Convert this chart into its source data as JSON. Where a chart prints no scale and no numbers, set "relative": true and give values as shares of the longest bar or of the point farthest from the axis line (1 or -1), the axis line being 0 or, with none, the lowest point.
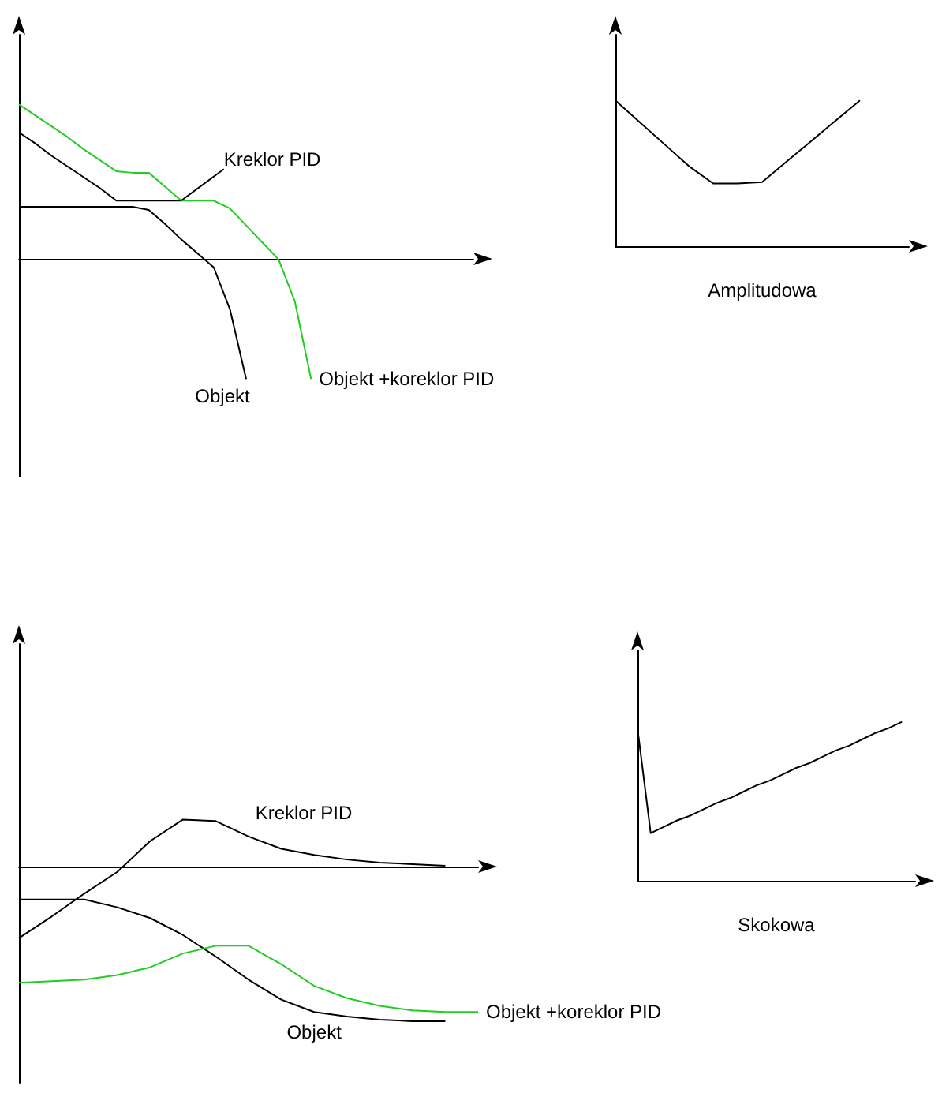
{
  "chart_data": [
    {
      "type": "line",
      "relative": true,
      "categories": [
        null,
        null,
        null,
        null,
        null,
        null,
        null,
        null,
        null,
        null,
        null,
        null,
        null,
        null,
        null,
        null,
        null,
        null,
        null,
        null,
        null,
        null,
        null,
        null,
        null,
        null,
        null,
        null,
        null
      ],
      "grid": false,
      "marker": "none",
      "series": [
        {
          "name": "Kreklor PID",
          "color": "#000000",
          "values": [
            0.82,
            0.75,
            0.67,
            0.6,
            0.53,
            0.46,
            0.38,
            0.38,
            0.38,
            0.38,
            0.38,
            null,
            null,
            null,
            null,
            null,
            null,
            null,
            null,
            null,
            null,
            null,
            null,
            null,
            null,
            null,
            null,
            null,
            null
          ]
        },
        {
          "name": "Objekt",
          "color": "#000000",
          "values": [
            0.34,
            0.34,
            0.34,
            0.34,
            0.34,
            0.34,
            0.34,
            0.34,
            0.32,
            0.23,
            0.13,
            0.04,
            -0.05,
            -0.32,
            -0.77,
            null,
            null,
            null,
            null,
            null,
            null,
            null,
            null,
            null,
            null,
            null,
            null,
            null,
            null
          ]
        },
        {
          "name": "Objekt +koreklor PID",
          "color": "#22cc22",
          "values": [
            1.0,
            0.93,
            0.86,
            0.79,
            0.71,
            0.64,
            0.57,
            0.56,
            0.56,
            0.47,
            0.38,
            0.38,
            0.38,
            0.33,
            0.22,
            0.11,
            0,
            -0.27,
            -0.77,
            null,
            null,
            null,
            null,
            null,
            null,
            null,
            null,
            null,
            null
          ]
        }
      ]
    },
    {
      "type": "line",
      "relative": true,
      "categories": [
        null,
        null,
        null,
        null,
        null,
        null,
        null,
        null,
        null,
        null,
        null,
        null,
        null
      ],
      "grid": false,
      "marker": "none",
      "xlabel": "Amplitudowa",
      "series": [
        {
          "color": "#000000",
          "values": [
            1.0,
            0.85,
            0.7,
            0.55,
            0.43,
            0.43,
            0.44,
            0.58,
            0.72,
            0.86,
            1.0,
            null,
            null
          ]
        }
      ]
    },
    {
      "type": "line",
      "relative": true,
      "categories": [
        null,
        null,
        null,
        null,
        null,
        null,
        null,
        null,
        null,
        null,
        null,
        null,
        null,
        null,
        null
      ],
      "grid": false,
      "marker": "none",
      "series": [
        {
          "name": "Kreklor PID",
          "color": "#000000",
          "values": [
            -0.46,
            -0.32,
            -0.17,
            -0.03,
            0.17,
            0.31,
            0.3,
            0.2,
            0.12,
            0.08,
            0.05,
            0.03,
            0.02,
            0.01,
            null
          ]
        },
        {
          "name": "Objekt",
          "color": "#000000",
          "values": [
            -0.21,
            -0.21,
            -0.21,
            -0.26,
            -0.33,
            -0.44,
            -0.58,
            -0.73,
            -0.86,
            -0.94,
            -0.97,
            -0.99,
            -1.0,
            -1.0,
            null
          ]
        },
        {
          "name": "Objekt +koreklor PID",
          "color": "#22cc22",
          "values": [
            -0.75,
            -0.74,
            -0.73,
            -0.7,
            -0.65,
            -0.56,
            -0.51,
            -0.51,
            -0.63,
            -0.77,
            -0.85,
            -0.9,
            -0.93,
            -0.94,
            -0.94
          ]
        }
      ]
    },
    {
      "type": "line",
      "relative": true,
      "categories": [
        null,
        null,
        null,
        null,
        null,
        null,
        null,
        null,
        null,
        null,
        null,
        null,
        null,
        null,
        null,
        null,
        null,
        null,
        null,
        null,
        null,
        null
      ],
      "grid": false,
      "marker": "none",
      "xlabel": "Skokowa",
      "series": [
        {
          "color": "#000000",
          "values": [
            0.96,
            0.3,
            0.34,
            0.38,
            0.41,
            0.45,
            0.49,
            0.52,
            0.56,
            0.6,
            0.63,
            0.67,
            0.71,
            0.74,
            0.78,
            0.82,
            0.85,
            0.89,
            0.93,
            0.96,
            1.0,
            null
          ]
        }
      ]
    }
  ]
}
